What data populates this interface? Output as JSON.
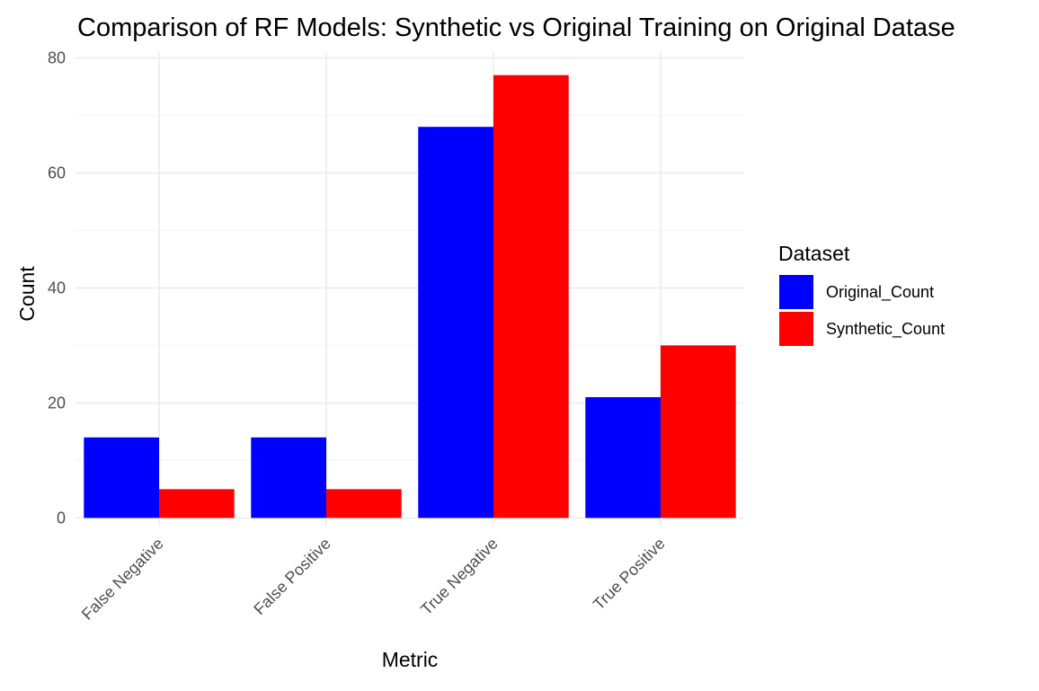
{
  "chart_data": {
    "type": "bar",
    "title": "Comparison of RF Models: Synthetic vs Original Training on Original Datase",
    "xlabel": "Metric",
    "ylabel": "Count",
    "categories": [
      "False Negative",
      "False Positive",
      "True Negative",
      "True Positive"
    ],
    "series": [
      {
        "name": "Original_Count",
        "color": "#0000ff",
        "values": [
          14,
          14,
          68,
          21
        ]
      },
      {
        "name": "Synthetic_Count",
        "color": "#ff0000",
        "values": [
          5,
          5,
          77,
          30
        ]
      }
    ],
    "ylim": [
      -1.5,
      81
    ],
    "yticks": [
      0,
      20,
      40,
      60,
      80
    ],
    "legend": {
      "title": "Dataset",
      "position": "right"
    },
    "grid": true
  }
}
